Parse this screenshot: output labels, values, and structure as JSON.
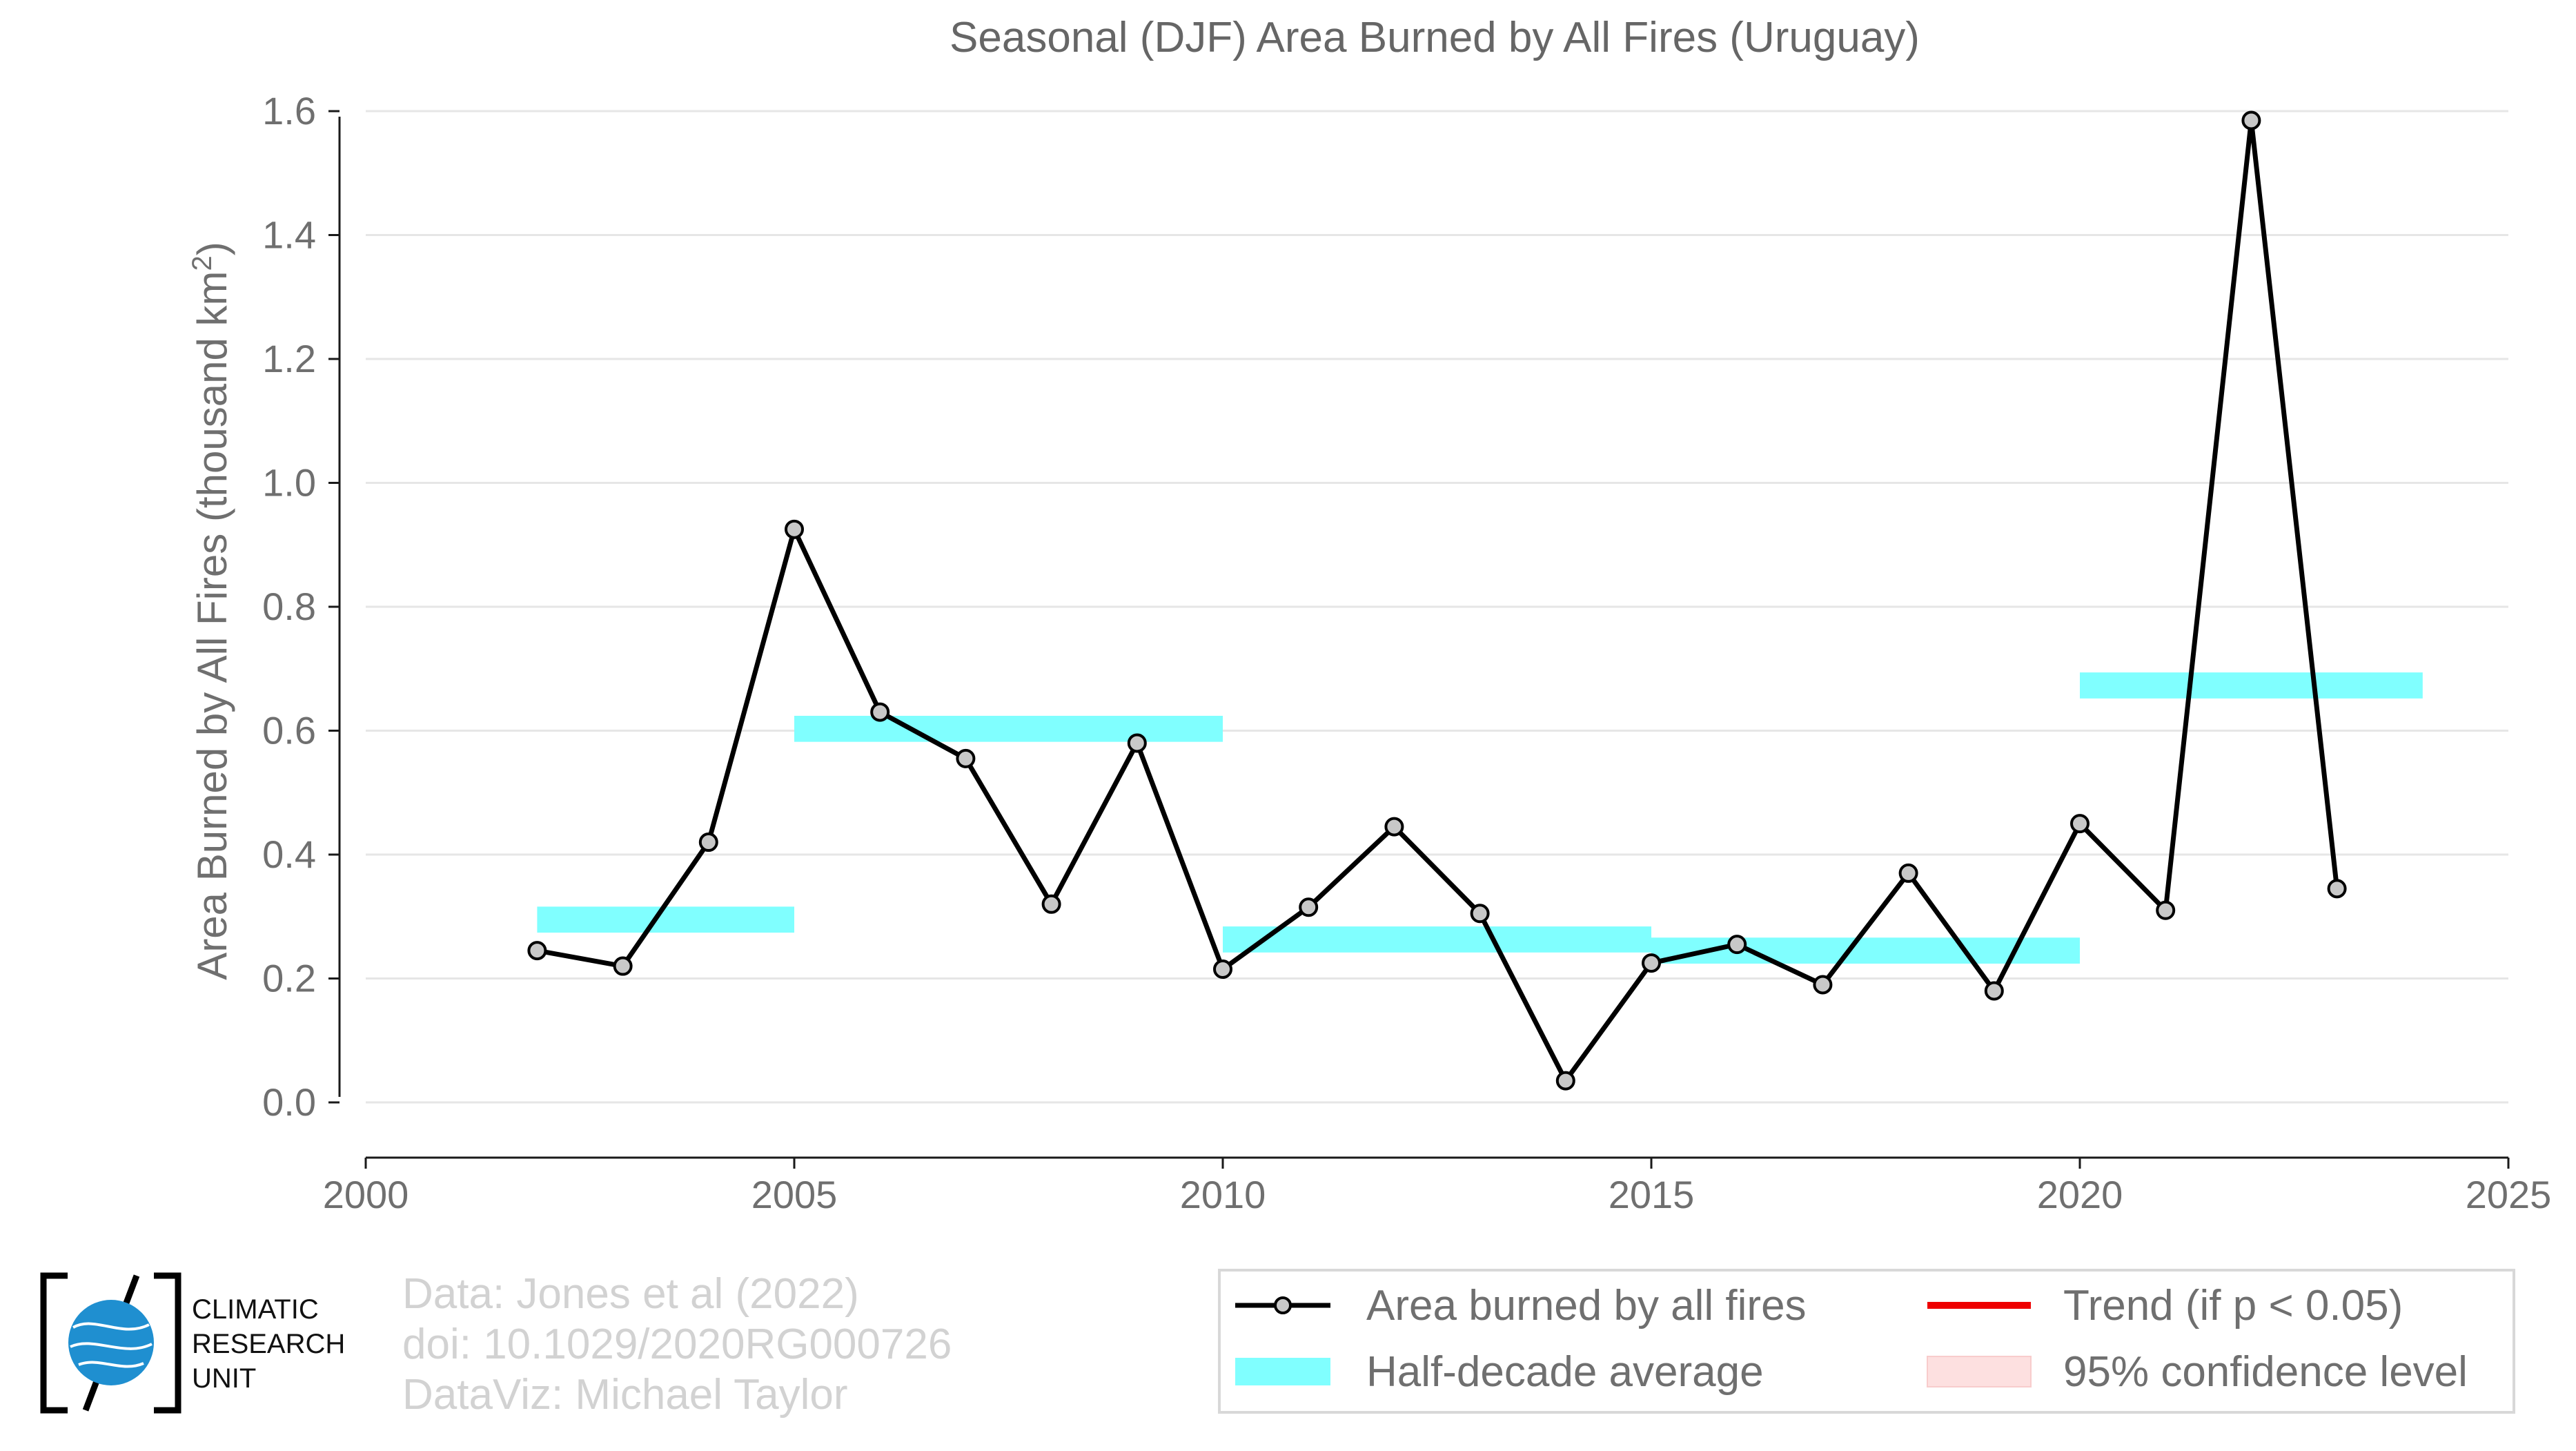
{
  "chart_data": {
    "type": "line",
    "title": "Seasonal (DJF) Area Burned by All Fires (Uruguay)",
    "ylabel": "Area Burned by All Fires (thousand km",
    "ylabel_sup": "2",
    "ylabel_close": ")",
    "xlim": [
      2000,
      2025
    ],
    "ylim": [
      0.0,
      1.6
    ],
    "x_ticks": [
      2000,
      2005,
      2010,
      2015,
      2020,
      2025
    ],
    "x_tick_labels": [
      "2000",
      "2005",
      "2010",
      "2015",
      "2020",
      "2025"
    ],
    "y_ticks": [
      0.0,
      0.2,
      0.4,
      0.6,
      0.8,
      1.0,
      1.2,
      1.4,
      1.6
    ],
    "y_tick_labels": [
      "0.0",
      "0.2",
      "0.4",
      "0.6",
      "0.8",
      "1.0",
      "1.2",
      "1.4",
      "1.6"
    ],
    "grid": "horizontal",
    "series": [
      {
        "name": "Area burned by all fires",
        "color": "#000000",
        "marker_fill": "#c8c8c8",
        "x": [
          2002,
          2003,
          2004,
          2005,
          2006,
          2007,
          2008,
          2009,
          2010,
          2011,
          2012,
          2013,
          2014,
          2015,
          2016,
          2017,
          2018,
          2019,
          2020,
          2021,
          2022,
          2023
        ],
        "values": [
          0.245,
          0.22,
          0.42,
          0.925,
          0.63,
          0.555,
          0.32,
          0.58,
          0.215,
          0.315,
          0.445,
          0.305,
          0.035,
          0.225,
          0.255,
          0.19,
          0.37,
          0.18,
          0.45,
          0.31,
          1.585,
          0.345
        ]
      }
    ],
    "half_decade_average": {
      "name": "Half-decade average",
      "color": "#80ffff",
      "segments": [
        {
          "x0": 2002,
          "x1": 2005,
          "value": 0.295
        },
        {
          "x0": 2005,
          "x1": 2010,
          "value": 0.603
        },
        {
          "x0": 2010,
          "x1": 2015,
          "value": 0.263
        },
        {
          "x0": 2015,
          "x1": 2020,
          "value": 0.245
        },
        {
          "x0": 2020,
          "x1": 2024,
          "value": 0.673
        }
      ]
    },
    "legend": {
      "placement": "bottom-right",
      "entries": [
        {
          "label": "Area burned by all fires",
          "kind": "line-marker",
          "color": "#000000"
        },
        {
          "label": "Trend (if p < 0.05)",
          "kind": "line",
          "color": "#ee0000"
        },
        {
          "label": "Half-decade average",
          "kind": "band",
          "color": "#80ffff"
        },
        {
          "label": "95% confidence level",
          "kind": "band",
          "color": "#fde0e0"
        }
      ]
    }
  },
  "credits": {
    "line1": "Data: Jones et al (2022)",
    "line2": "doi: 10.1029/2020RG000726",
    "line3": "DataViz: Michael Taylor"
  },
  "logo": {
    "line1": "CLIMATIC",
    "line2": "RESEARCH",
    "line3": "UNIT",
    "globe_color": "#1f8fd0"
  }
}
